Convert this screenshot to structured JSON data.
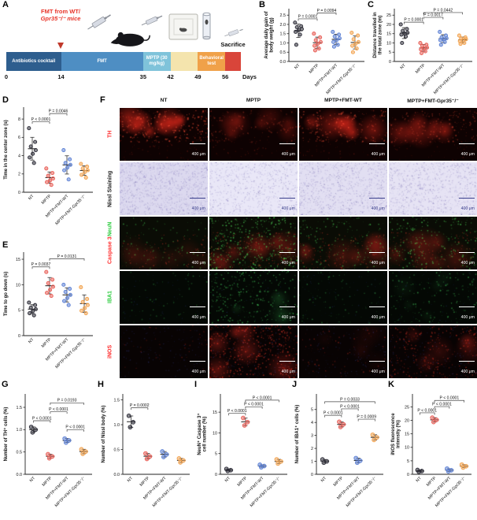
{
  "panels": {
    "A": "A",
    "B": "B",
    "C": "C",
    "D": "D",
    "E": "E",
    "F": "F",
    "G": "G",
    "H": "H",
    "I": "I",
    "J": "J",
    "K": "K"
  },
  "groups": {
    "names": [
      "NT",
      "MPTP",
      "MPTP+FMT-WT",
      "MPTP+FMT-Gpr35⁻/⁻"
    ],
    "colors": [
      "#2b2b36",
      "#e85d55",
      "#5b7fd4",
      "#f2a24e"
    ]
  },
  "panelA": {
    "fmt_line1": "FMT from WT/",
    "fmt_line2": "Gpr35⁻/⁻ mice",
    "sacrifice": "Sacrifice",
    "timeline": {
      "segments": [
        {
          "label": "Antibiotics cocktail",
          "color": "#2e5e8e",
          "start": 0,
          "end": 14
        },
        {
          "label": "FMT",
          "color": "#4e8ec3",
          "start": 14,
          "end": 35
        },
        {
          "label": "MPTP (30 mg/kg)",
          "color": "#7fc3da",
          "start": 35,
          "end": 42
        },
        {
          "label": "",
          "color": "#f4e4ad",
          "start": 42,
          "end": 49
        },
        {
          "label": "Behavioral test",
          "color": "#f0a149",
          "start": 49,
          "end": 56
        },
        {
          "label": "",
          "color": "#d9453a",
          "start": 56,
          "end": 60
        }
      ],
      "ticks": [
        0,
        14,
        35,
        42,
        49,
        56
      ],
      "axis_label": "Days"
    }
  },
  "panelF": {
    "scale_label": "400 μm",
    "rows": [
      {
        "parts": [
          {
            "text": "TH",
            "color": "#ff2d2d"
          }
        ]
      },
      {
        "parts": [
          {
            "text": "Nissl Staining",
            "color": "#1c1c1c"
          }
        ]
      },
      {
        "parts": [
          {
            "text": "Caspase 3 ",
            "color": "#ff2d2d"
          },
          {
            "text": "NeuN",
            "color": "#2ecc40"
          }
        ]
      },
      {
        "parts": [
          {
            "text": "IBA1",
            "color": "#2ecc40"
          }
        ]
      },
      {
        "parts": [
          {
            "text": "iNOS",
            "color": "#ff2d2d"
          }
        ]
      }
    ]
  },
  "chart_data": [
    {
      "panel": "B",
      "type": "scatter",
      "ylabel_lines": [
        "Average daily gain of",
        "body weight (g)"
      ],
      "ytick_vals": [
        0,
        0.5,
        1,
        1.5,
        2,
        2.5
      ],
      "ytick_labels": [
        "0.0",
        "0.5",
        "1.0",
        "1.5",
        "2.0",
        "2.5"
      ],
      "ymax": 2.85,
      "points": [
        [
          2.1,
          1.9,
          1.85,
          1.75,
          1.7,
          1.6,
          1.45,
          0.9
        ],
        [
          1.5,
          1.3,
          1.15,
          1.05,
          0.95,
          0.85,
          0.7,
          0.6
        ],
        [
          1.6,
          1.45,
          1.35,
          1.25,
          1.15,
          1.05,
          0.9,
          0.8
        ],
        [
          1.55,
          1.4,
          1.2,
          1.05,
          0.95,
          0.85,
          0.7,
          0.5
        ]
      ],
      "brackets": [
        {
          "a": 0,
          "b": 1,
          "y": 2.3,
          "label": "P = 0.0001"
        },
        {
          "a": 1,
          "b": 2,
          "y": 2.62,
          "label": "P = 0.0094"
        }
      ]
    },
    {
      "panel": "C",
      "type": "scatter",
      "ylabel_lines": [
        "Distance travelled in",
        "the total zone (m)"
      ],
      "ytick_vals": [
        0,
        5,
        10,
        15,
        20,
        25
      ],
      "ytick_labels": [
        "0",
        "5",
        "10",
        "15",
        "20",
        "25"
      ],
      "ymax": 28.5,
      "points": [
        [
          20,
          17.5,
          16.5,
          15.5,
          15,
          14.5,
          13.5,
          10
        ],
        [
          10,
          9,
          8.5,
          7.5,
          7,
          6.5,
          5.5,
          4.5
        ],
        [
          16,
          14,
          13,
          12.5,
          12,
          11.5,
          10.5,
          9
        ],
        [
          14,
          13,
          12.5,
          12,
          11.5,
          11,
          10,
          9.5
        ]
      ],
      "brackets": [
        {
          "a": 0,
          "b": 1,
          "y": 21.2,
          "label": "P = 0.0001"
        },
        {
          "a": 1,
          "b": 2,
          "y": 23.8,
          "label": "P = 0.0017"
        },
        {
          "a": 1,
          "b": 3,
          "y": 26.4,
          "label": "P = 0.0442"
        }
      ]
    },
    {
      "panel": "D",
      "type": "scatter",
      "ylabel_lines": [
        "Time in the center zone (s)"
      ],
      "ytick_vals": [
        0,
        2,
        4,
        6,
        8
      ],
      "ytick_labels": [
        "0",
        "2",
        "4",
        "6",
        "8"
      ],
      "ymax": 9.3,
      "points": [
        [
          7,
          5.5,
          5,
          4.6,
          4.2,
          3.8,
          3.2
        ],
        [
          2.6,
          2.1,
          1.8,
          1.5,
          1.3,
          1.1,
          0.8
        ],
        [
          4.6,
          3.6,
          3.2,
          3,
          2.7,
          2.4,
          1.4
        ],
        [
          3.1,
          2.8,
          2.6,
          2.4,
          2.2,
          1.9,
          1.6
        ]
      ],
      "brackets": [
        {
          "a": 0,
          "b": 1,
          "y": 7.7,
          "label": "P < 0.0001"
        },
        {
          "a": 1,
          "b": 2,
          "y": 8.6,
          "label": "P = 0.0046"
        }
      ]
    },
    {
      "panel": "E",
      "type": "scatter",
      "ylabel_lines": [
        "Time to go down (s)"
      ],
      "ytick_vals": [
        0,
        5,
        10,
        15
      ],
      "ytick_labels": [
        "0",
        "5",
        "10",
        "15"
      ],
      "ymax": 16.4,
      "points": [
        [
          6.5,
          6,
          5.5,
          5.2,
          4.8,
          4.4,
          4
        ],
        [
          12.5,
          11,
          10.3,
          9.6,
          9,
          8.4,
          7.8
        ],
        [
          10,
          9.2,
          8.6,
          8,
          7.4,
          6.8,
          6
        ],
        [
          9.5,
          7.2,
          6.6,
          6,
          5.4,
          4.9,
          4.4
        ]
      ],
      "brackets": [
        {
          "a": 0,
          "b": 1,
          "y": 13.5,
          "label": "P = 0.0037"
        },
        {
          "a": 1,
          "b": 3,
          "y": 15.1,
          "label": "P = 0.0131"
        }
      ]
    },
    {
      "panel": "G",
      "type": "scatter",
      "ylabel_lines": [
        "Number of TH⁺ cells (%)"
      ],
      "ytick_vals": [
        0,
        0.5,
        1,
        1.5
      ],
      "ytick_labels": [
        "0.0",
        "0.5",
        "1.0",
        "1.5"
      ],
      "ymax": 1.8,
      "points": [
        [
          1.06,
          1.0,
          0.94
        ],
        [
          0.45,
          0.4,
          0.36
        ],
        [
          0.8,
          0.76,
          0.71
        ],
        [
          0.56,
          0.51,
          0.46
        ]
      ],
      "brackets": [
        {
          "a": 2,
          "b": 3,
          "y": 1.0,
          "label": "P < 0.0001"
        },
        {
          "a": 0,
          "b": 1,
          "y": 1.2,
          "label": "P < 0.0001"
        },
        {
          "a": 1,
          "b": 2,
          "y": 1.4,
          "label": "P < 0.0001"
        },
        {
          "a": 1,
          "b": 3,
          "y": 1.6,
          "label": "P = 0.0193"
        }
      ]
    },
    {
      "panel": "H",
      "type": "scatter",
      "ylabel_lines": [
        "Number of Nissl body (%)"
      ],
      "ytick_vals": [
        0,
        0.5,
        1,
        1.5
      ],
      "ytick_labels": [
        "0.0",
        "0.5",
        "1.0",
        "1.5"
      ],
      "ymax": 1.62,
      "points": [
        [
          1.18,
          1.05,
          0.95
        ],
        [
          0.42,
          0.36,
          0.31
        ],
        [
          0.46,
          0.4,
          0.35
        ],
        [
          0.32,
          0.28,
          0.24
        ]
      ],
      "brackets": [
        {
          "a": 0,
          "b": 1,
          "y": 1.34,
          "label": "P = 0.0002"
        }
      ]
    },
    {
      "panel": "I",
      "type": "scatter",
      "ylabel_lines": [
        "NeuN⁺ Caspase 3⁺",
        "cell number (%)"
      ],
      "ytick_vals": [
        0,
        5,
        10,
        15
      ],
      "ytick_labels": [
        "0",
        "5",
        "10",
        "15"
      ],
      "ymax": 19.4,
      "points": [
        [
          1.3,
          1.0,
          0.8
        ],
        [
          13.6,
          12.6,
          11.8
        ],
        [
          2.3,
          2.0,
          1.7
        ],
        [
          3.6,
          3.1,
          2.6
        ]
      ],
      "brackets": [
        {
          "a": 0,
          "b": 1,
          "y": 14.7,
          "label": "P < 0.0001"
        },
        {
          "a": 1,
          "b": 2,
          "y": 16.3,
          "label": "P < 0.0001"
        },
        {
          "a": 1,
          "b": 3,
          "y": 17.9,
          "label": "P < 0.0001"
        }
      ]
    },
    {
      "panel": "J",
      "type": "scatter",
      "ylabel_lines": [
        "Number of IBA1⁺ cells (%)"
      ],
      "ytick_vals": [
        0,
        1,
        2,
        3,
        4,
        5
      ],
      "ytick_labels": [
        "0",
        "1",
        "2",
        "3",
        "4",
        "5"
      ],
      "ymax": 6.2,
      "points": [
        [
          1.15,
          1.0,
          0.9
        ],
        [
          4.05,
          3.85,
          3.65
        ],
        [
          1.25,
          1.05,
          0.9
        ],
        [
          3.05,
          2.85,
          2.65
        ]
      ],
      "brackets": [
        {
          "a": 2,
          "b": 3,
          "y": 4.25,
          "label": "P = 0.0009"
        },
        {
          "a": 0,
          "b": 1,
          "y": 4.55,
          "label": "P < 0.0001"
        },
        {
          "a": 1,
          "b": 2,
          "y": 5.05,
          "label": "P < 0.0001"
        },
        {
          "a": 0,
          "b": 3,
          "y": 5.6,
          "label": "P = 0.0033"
        }
      ]
    },
    {
      "panel": "K",
      "type": "scatter",
      "ylabel_lines": [
        "iNOS fluorescence",
        "intensity (%)"
      ],
      "ytick_vals": [
        0,
        5,
        10,
        15,
        20,
        25
      ],
      "ytick_labels": [
        "0",
        "5",
        "10",
        "15",
        "20",
        "25"
      ],
      "ymax": 29.8,
      "points": [
        [
          1.6,
          1.2,
          0.9
        ],
        [
          21,
          20.2,
          19.4
        ],
        [
          2.1,
          1.5,
          1.1
        ],
        [
          3.6,
          3.0,
          2.5
        ]
      ],
      "brackets": [
        {
          "a": 0,
          "b": 1,
          "y": 22.8,
          "label": "P < 0.0001"
        },
        {
          "a": 1,
          "b": 2,
          "y": 25.1,
          "label": "P < 0.0001"
        },
        {
          "a": 1,
          "b": 3,
          "y": 27.4,
          "label": "P < 0.0001"
        }
      ]
    }
  ]
}
